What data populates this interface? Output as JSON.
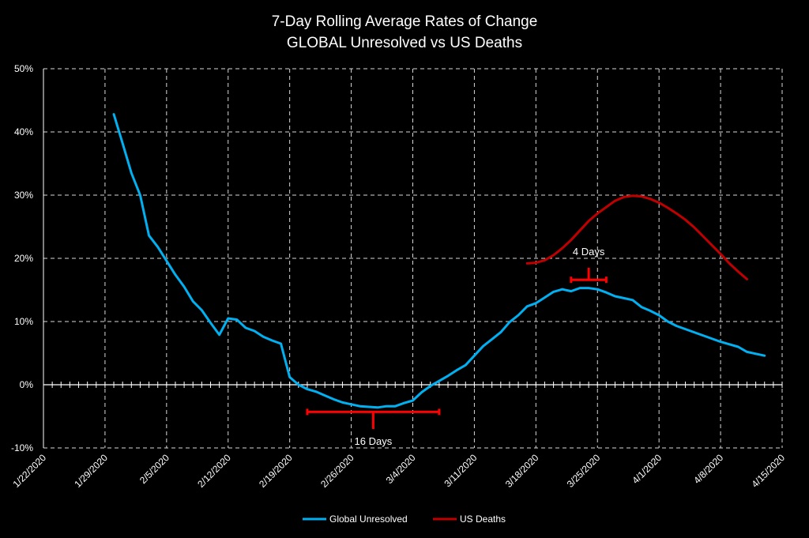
{
  "chart_data": {
    "type": "line",
    "title_lines": [
      "7-Day Rolling Average Rates of Change",
      "GLOBAL Unresolved vs US Deaths"
    ],
    "xlabel": "",
    "ylabel": "",
    "x_start": "1/22/2020",
    "x_end": "4/15/2020",
    "x_ticks": [
      "1/22/2020",
      "1/29/2020",
      "2/5/2020",
      "2/12/2020",
      "2/19/2020",
      "2/26/2020",
      "3/4/2020",
      "3/11/2020",
      "3/18/2020",
      "3/25/2020",
      "4/1/2020",
      "4/8/2020",
      "4/15/2020"
    ],
    "ylim": [
      -10,
      50
    ],
    "y_ticks": [
      -10,
      0,
      10,
      20,
      30,
      40,
      50
    ],
    "y_tick_labels": [
      "-10%",
      "0%",
      "10%",
      "20%",
      "30%",
      "40%",
      "50%"
    ],
    "y_unit": "%",
    "grid": "dashed vertical and horizontal",
    "legend_position": "bottom",
    "series": [
      {
        "name": "Global Unresolved",
        "color": "#00b0f0",
        "points": [
          [
            "1/30/2020",
            42.8
          ],
          [
            "1/31/2020",
            38.2
          ],
          [
            "2/1/2020",
            33.5
          ],
          [
            "2/2/2020",
            30.0
          ],
          [
            "2/3/2020",
            23.6
          ],
          [
            "2/4/2020",
            21.8
          ],
          [
            "2/5/2020",
            19.6
          ],
          [
            "2/6/2020",
            17.4
          ],
          [
            "2/7/2020",
            15.5
          ],
          [
            "2/8/2020",
            13.2
          ],
          [
            "2/9/2020",
            11.8
          ],
          [
            "2/10/2020",
            9.8
          ],
          [
            "2/11/2020",
            7.9
          ],
          [
            "2/12/2020",
            10.5
          ],
          [
            "2/13/2020",
            10.3
          ],
          [
            "2/14/2020",
            9.0
          ],
          [
            "2/15/2020",
            8.5
          ],
          [
            "2/16/2020",
            7.6
          ],
          [
            "2/17/2020",
            7.0
          ],
          [
            "2/18/2020",
            6.5
          ],
          [
            "2/19/2020",
            1.2
          ],
          [
            "2/20/2020",
            0.0
          ],
          [
            "2/21/2020",
            -0.7
          ],
          [
            "2/22/2020",
            -1.1
          ],
          [
            "2/23/2020",
            -1.7
          ],
          [
            "2/24/2020",
            -2.3
          ],
          [
            "2/25/2020",
            -2.8
          ],
          [
            "2/26/2020",
            -3.1
          ],
          [
            "2/27/2020",
            -3.4
          ],
          [
            "2/28/2020",
            -3.5
          ],
          [
            "2/29/2020",
            -3.6
          ],
          [
            "3/1/2020",
            -3.4
          ],
          [
            "3/2/2020",
            -3.4
          ],
          [
            "3/3/2020",
            -2.9
          ],
          [
            "3/4/2020",
            -2.5
          ],
          [
            "3/5/2020",
            -1.2
          ],
          [
            "3/6/2020",
            -0.2
          ],
          [
            "3/7/2020",
            0.6
          ],
          [
            "3/8/2020",
            1.4
          ],
          [
            "3/9/2020",
            2.3
          ],
          [
            "3/10/2020",
            3.1
          ],
          [
            "3/11/2020",
            4.6
          ],
          [
            "3/12/2020",
            6.1
          ],
          [
            "3/13/2020",
            7.2
          ],
          [
            "3/14/2020",
            8.3
          ],
          [
            "3/15/2020",
            9.9
          ],
          [
            "3/16/2020",
            11.0
          ],
          [
            "3/17/2020",
            12.4
          ],
          [
            "3/18/2020",
            12.9
          ],
          [
            "3/19/2020",
            13.8
          ],
          [
            "3/20/2020",
            14.7
          ],
          [
            "3/21/2020",
            15.1
          ],
          [
            "3/22/2020",
            14.8
          ],
          [
            "3/23/2020",
            15.3
          ],
          [
            "3/24/2020",
            15.3
          ],
          [
            "3/25/2020",
            15.1
          ],
          [
            "3/26/2020",
            14.6
          ],
          [
            "3/27/2020",
            14.0
          ],
          [
            "3/28/2020",
            13.7
          ],
          [
            "3/29/2020",
            13.4
          ],
          [
            "3/30/2020",
            12.3
          ],
          [
            "3/31/2020",
            11.7
          ],
          [
            "4/1/2020",
            11.0
          ],
          [
            "4/2/2020",
            10.0
          ],
          [
            "4/3/2020",
            9.3
          ],
          [
            "4/4/2020",
            8.8
          ],
          [
            "4/5/2020",
            8.3
          ],
          [
            "4/6/2020",
            7.8
          ],
          [
            "4/7/2020",
            7.3
          ],
          [
            "4/8/2020",
            6.8
          ],
          [
            "4/9/2020",
            6.4
          ],
          [
            "4/10/2020",
            6.0
          ],
          [
            "4/11/2020",
            5.2
          ],
          [
            "4/12/2020",
            4.9
          ],
          [
            "4/13/2020",
            4.6
          ]
        ]
      },
      {
        "name": "US Deaths",
        "color": "#c00000",
        "points": [
          [
            "3/17/2020",
            19.2
          ],
          [
            "3/18/2020",
            19.3
          ],
          [
            "3/19/2020",
            19.7
          ],
          [
            "3/20/2020",
            20.5
          ],
          [
            "3/21/2020",
            21.6
          ],
          [
            "3/22/2020",
            22.9
          ],
          [
            "3/23/2020",
            24.4
          ],
          [
            "3/24/2020",
            25.9
          ],
          [
            "3/25/2020",
            27.1
          ],
          [
            "3/26/2020",
            28.1
          ],
          [
            "3/27/2020",
            29.1
          ],
          [
            "3/28/2020",
            29.7
          ],
          [
            "3/29/2020",
            29.9
          ],
          [
            "3/30/2020",
            29.8
          ],
          [
            "3/31/2020",
            29.4
          ],
          [
            "4/1/2020",
            28.8
          ],
          [
            "4/2/2020",
            28.0
          ],
          [
            "4/3/2020",
            27.1
          ],
          [
            "4/4/2020",
            26.1
          ],
          [
            "4/5/2020",
            24.9
          ],
          [
            "4/6/2020",
            23.5
          ],
          [
            "4/7/2020",
            22.1
          ],
          [
            "4/8/2020",
            20.7
          ],
          [
            "4/9/2020",
            19.2
          ],
          [
            "4/10/2020",
            17.9
          ],
          [
            "4/11/2020",
            16.7
          ]
        ]
      }
    ],
    "annotations": [
      {
        "text": "16 Days",
        "from": "2/21/2020",
        "to": "3/7/2020",
        "y": -4.3,
        "label_y": -9.0,
        "color": "#ff0000",
        "stem_to": -7.0
      },
      {
        "text": "4 Days",
        "from": "3/22/2020",
        "to": "3/26/2020",
        "y": 16.6,
        "label_y": 21.0,
        "color": "#ff0000",
        "stem_to": 18.5
      }
    ]
  }
}
